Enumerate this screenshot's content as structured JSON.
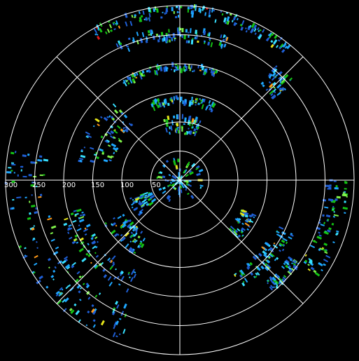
{
  "chart_data": {
    "type": "radar-ppi",
    "range_rings": [
      50,
      100,
      150,
      200,
      250,
      300
    ],
    "range_labels": [
      "300",
      "250",
      "200",
      "150",
      "100",
      "50"
    ],
    "radial_spokes_deg": [
      0,
      45,
      90,
      135,
      180,
      225,
      270,
      315
    ],
    "grid": true,
    "colors": {
      "background": "#000000",
      "grid": "#ffffff",
      "palette": [
        "#1f5fd6",
        "#1ea7ff",
        "#37e0ff",
        "#14c414",
        "#7ff24a",
        "#e5e51a",
        "#ff9a1a",
        "#e01818"
      ]
    },
    "echo_bands": [
      {
        "az": [
          330,
          40
        ],
        "range": [
          280,
          300
        ],
        "intensity": 0.75
      },
      {
        "az": [
          40,
          50
        ],
        "range": [
          215,
          260
        ],
        "intensity": 0.55
      },
      {
        "az": [
          335,
          20
        ],
        "range": [
          238,
          262
        ],
        "intensity": 0.6
      },
      {
        "az": [
          330,
          20
        ],
        "range": [
          188,
          200
        ],
        "intensity": 0.5
      },
      {
        "az": [
          340,
          25
        ],
        "range": [
          130,
          145
        ],
        "intensity": 0.45
      },
      {
        "az": [
          345,
          20
        ],
        "range": [
          80,
          110
        ],
        "intensity": 0.35
      },
      {
        "az": [
          0,
          360
        ],
        "range": [
          0,
          40
        ],
        "intensity": 0.4
      },
      {
        "az": [
          200,
          280
        ],
        "range": [
          230,
          300
        ],
        "intensity": 0.6
      },
      {
        "az": [
          205,
          255
        ],
        "range": [
          175,
          215
        ],
        "intensity": 0.55
      },
      {
        "az": [
          210,
          240
        ],
        "range": [
          110,
          150
        ],
        "intensity": 0.5
      },
      {
        "az": [
          230,
          250
        ],
        "range": [
          55,
          95
        ],
        "intensity": 0.35
      },
      {
        "az": [
          115,
          150
        ],
        "range": [
          185,
          215
        ],
        "intensity": 0.55
      },
      {
        "az": [
          125,
          140
        ],
        "range": [
          230,
          250
        ],
        "intensity": 0.5
      },
      {
        "az": [
          115,
          135
        ],
        "range": [
          120,
          145
        ],
        "intensity": 0.45
      },
      {
        "az": [
          90,
          125
        ],
        "range": [
          250,
          290
        ],
        "intensity": 0.4
      },
      {
        "az": [
          280,
          320
        ],
        "range": [
          120,
          180
        ],
        "intensity": 0.35
      }
    ]
  }
}
